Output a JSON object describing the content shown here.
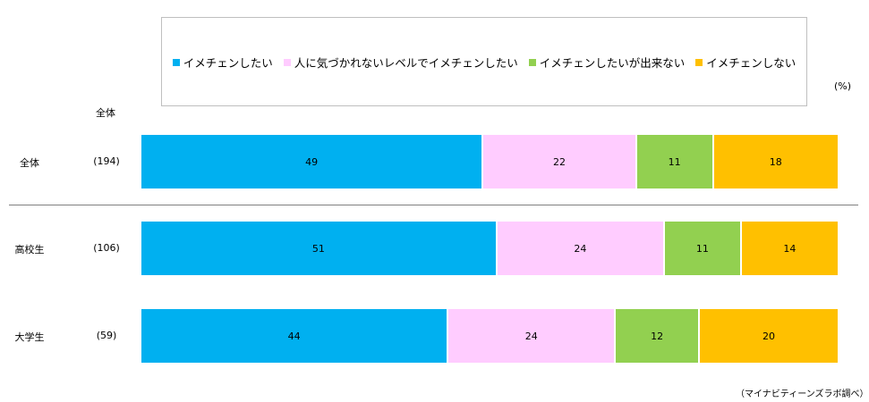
{
  "legend": [
    {
      "label": "イメチェンしたい",
      "color": "#00b0f0"
    },
    {
      "label": "人に気づかれないレベルでイメチェンしたい",
      "color": "#ffccff"
    },
    {
      "label": "イメチェンしたいが出来ない",
      "color": "#92d050"
    },
    {
      "label": "イメチェンしない",
      "color": "#ffc000"
    }
  ],
  "unit_label": "(%)",
  "column_header": "全体",
  "source_note": "（マイナビティーンズラボ調べ）",
  "chart_data": {
    "type": "bar",
    "orientation": "horizontal",
    "stacked": true,
    "percent": true,
    "categories": [
      "全体",
      "高校生",
      "大学生"
    ],
    "sample_sizes": [
      "(194)",
      "(106)",
      "(59)"
    ],
    "series": [
      {
        "name": "イメチェンしたい",
        "values": [
          49,
          51,
          44
        ]
      },
      {
        "name": "人に気づかれないレベルでイメチェンしたい",
        "values": [
          22,
          24,
          24
        ]
      },
      {
        "name": "イメチェンしたいが出来ない",
        "values": [
          11,
          11,
          12
        ]
      },
      {
        "name": "イメチェンしない",
        "values": [
          18,
          14,
          20
        ]
      }
    ],
    "xlim": [
      0,
      100
    ],
    "legend_position": "top"
  }
}
